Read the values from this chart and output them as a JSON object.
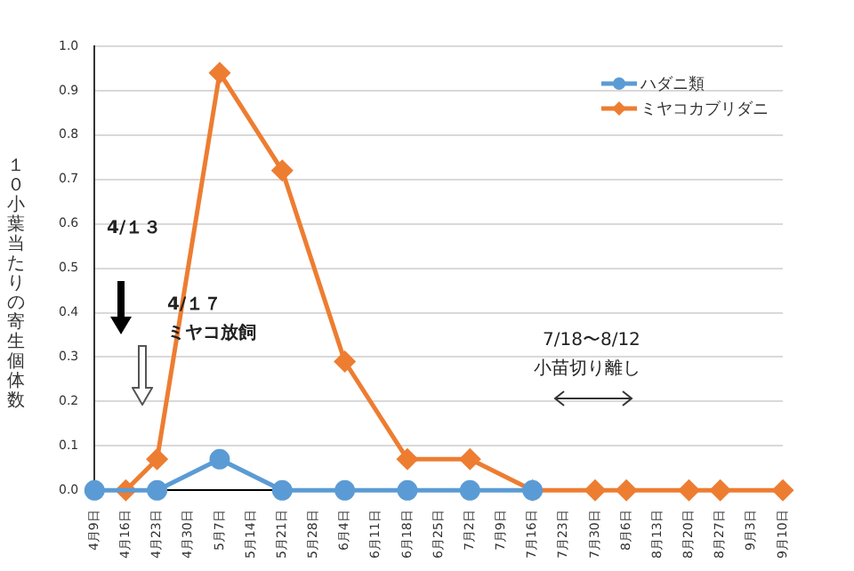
{
  "chart_data": {
    "type": "line",
    "ylabel": "１０小葉当たりの寄生個体数",
    "categories": [
      "4月9日",
      "4月16日",
      "4月23日",
      "4月30日",
      "5月7日",
      "5月14日",
      "5月21日",
      "5月28日",
      "6月4日",
      "6月11日",
      "6月18日",
      "6月25日",
      "7月2日",
      "7月9日",
      "7月16日",
      "7月23日",
      "7月30日",
      "8月6日",
      "8月13日",
      "8月20日",
      "8月27日",
      "9月3日",
      "9月10日"
    ],
    "series": [
      {
        "name": "ハダニ類",
        "color": "#5b9bd5",
        "marker": "circle",
        "values": [
          0,
          null,
          0,
          null,
          0.07,
          null,
          0,
          null,
          0,
          null,
          0,
          null,
          0,
          null,
          0,
          null,
          null,
          null,
          null,
          null,
          null,
          null,
          null
        ]
      },
      {
        "name": "ミヤコカブリダニ",
        "color": "#ed7d31",
        "marker": "diamond",
        "values": [
          null,
          0,
          0.07,
          null,
          0.94,
          null,
          0.72,
          null,
          0.29,
          null,
          0.07,
          null,
          0.07,
          null,
          0,
          null,
          0,
          0,
          null,
          0,
          0,
          null,
          0
        ]
      }
    ],
    "ylim": [
      0,
      1
    ],
    "yticks": [
      {
        "value": 0,
        "label": "0.0"
      },
      {
        "value": 0.1,
        "label": "0.1"
      },
      {
        "value": 0.2,
        "label": "0.2"
      },
      {
        "value": 0.3,
        "label": "0.3"
      },
      {
        "value": 0.4,
        "label": "0.4"
      },
      {
        "value": 0.5,
        "label": "0.5"
      },
      {
        "value": 0.6,
        "label": "0.6"
      },
      {
        "value": 0.7,
        "label": "0.7"
      },
      {
        "value": 0.8,
        "label": "0.8"
      },
      {
        "value": 0.9,
        "label": "0.9"
      },
      {
        "value": 1,
        "label": "1.0"
      }
    ],
    "grid": "y",
    "legend": "top right",
    "line_style": "solid",
    "annotations": [
      "4/１３",
      "4/１７",
      "ミヤコ放飼",
      "7/18〜8/12",
      "小苗切り離し"
    ]
  }
}
